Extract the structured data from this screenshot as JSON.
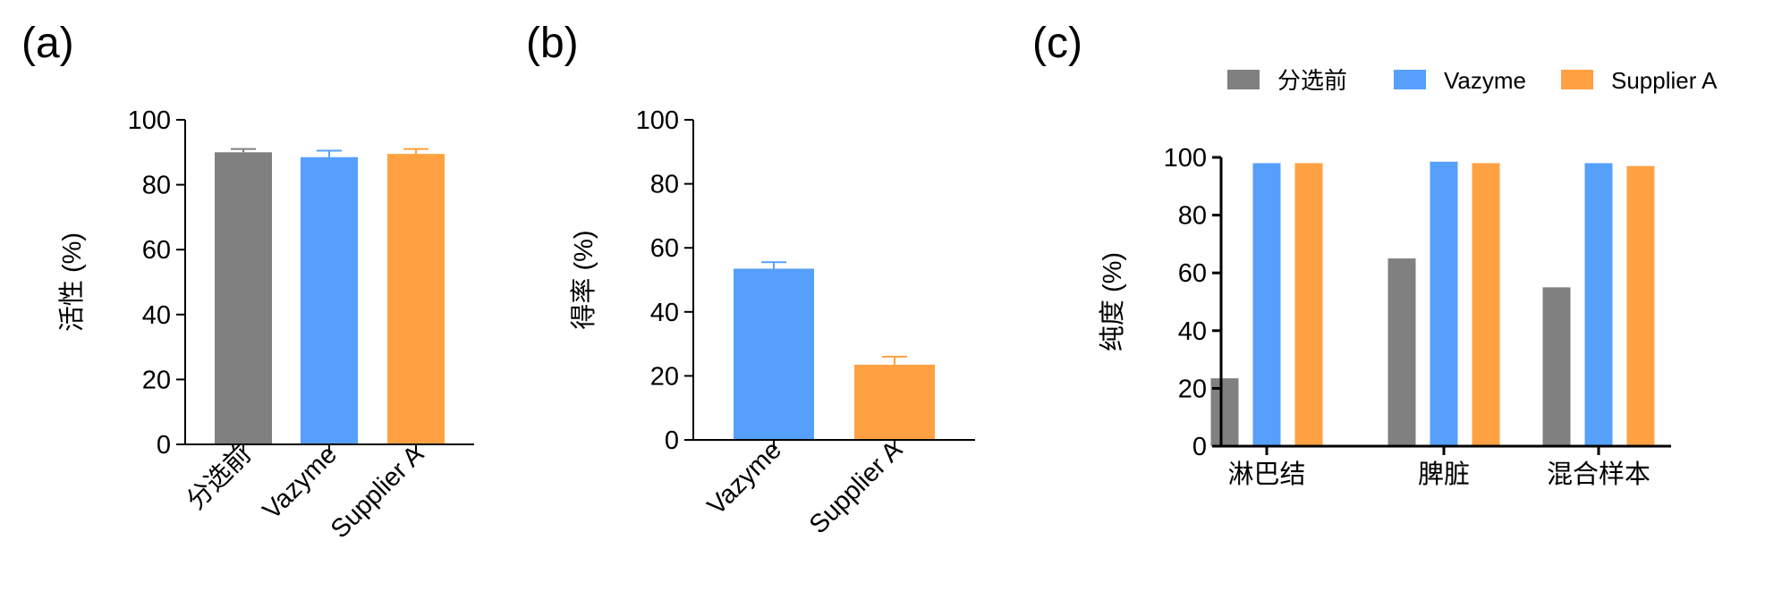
{
  "colors": {
    "pre_sort": "#808080",
    "vazyme": "#56a0fb",
    "supplier_a": "#ffa142",
    "axis": "#000000"
  },
  "chart_data": [
    {
      "panel": "(a)",
      "type": "bar",
      "categories": [
        "分选前",
        "Vazyme",
        "Supplier A"
      ],
      "values": [
        90,
        88.5,
        89.5
      ],
      "error": [
        1,
        2,
        1.5
      ],
      "bar_colors": [
        "#808080",
        "#56a0fb",
        "#ffa142"
      ],
      "ylabel": "活性 (%)",
      "ylim": [
        0,
        100
      ],
      "yticks": [
        0,
        20,
        40,
        60,
        80,
        100
      ],
      "tick_labels": [
        "0",
        "20",
        "40",
        "60",
        "80",
        "100"
      ],
      "grid": false
    },
    {
      "panel": "(b)",
      "type": "bar",
      "categories": [
        "Vazyme",
        "Supplier A"
      ],
      "values": [
        53.5,
        23.5
      ],
      "error": [
        2,
        2.5
      ],
      "bar_colors": [
        "#56a0fb",
        "#ffa142"
      ],
      "ylabel": "得率 (%)",
      "ylim": [
        0,
        100
      ],
      "yticks": [
        0,
        20,
        40,
        60,
        80,
        100
      ],
      "tick_labels": [
        "0",
        "20",
        "40",
        "60",
        "80",
        "100"
      ],
      "grid": false
    },
    {
      "panel": "(c)",
      "type": "bar",
      "categories": [
        "淋巴结",
        "脾脏",
        "混合样本"
      ],
      "series": [
        {
          "name": "分选前",
          "color": "#808080",
          "values": [
            23.5,
            65,
            55
          ]
        },
        {
          "name": "Vazyme",
          "color": "#56a0fb",
          "values": [
            98,
            98.5,
            98
          ]
        },
        {
          "name": "Supplier A",
          "color": "#ffa142",
          "values": [
            98,
            98,
            97
          ]
        }
      ],
      "ylabel": "纯度 (%)",
      "ylim": [
        0,
        100
      ],
      "yticks": [
        0,
        20,
        40,
        60,
        80,
        100
      ],
      "tick_labels": [
        "0",
        "20",
        "40",
        "60",
        "80",
        "100"
      ],
      "legend_position": "top",
      "grid": false
    }
  ]
}
